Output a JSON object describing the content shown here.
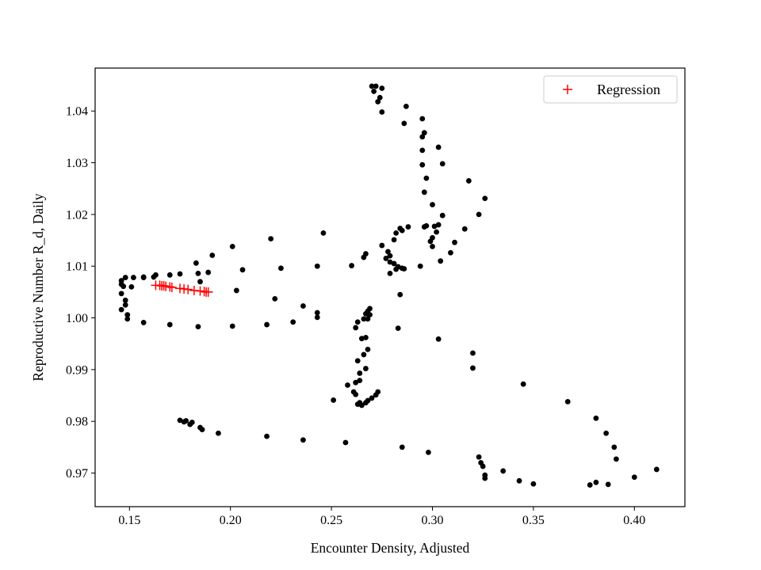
{
  "chart_data": {
    "type": "scatter",
    "title": "",
    "xlabel": "Encounter Density, Adjusted",
    "ylabel": "Reproductive Number R_d, Daily",
    "xlim": [
      0.133,
      0.425
    ],
    "ylim": [
      0.9635,
      1.0483
    ],
    "xticks": [
      0.15,
      0.2,
      0.25,
      0.3,
      0.35,
      0.4
    ],
    "xtick_labels": [
      "0.15",
      "0.20",
      "0.25",
      "0.30",
      "0.35",
      "0.40"
    ],
    "yticks": [
      0.97,
      0.98,
      0.99,
      1.0,
      1.01,
      1.02,
      1.03,
      1.04
    ],
    "ytick_labels": [
      "0.97",
      "0.98",
      "0.99",
      "1.00",
      "1.01",
      "1.02",
      "1.03",
      "1.04"
    ],
    "grid": false,
    "legend": {
      "position": "top-right",
      "entries": [
        "Regression"
      ]
    },
    "colors": {
      "points": "#000000",
      "regression": "#ff0000",
      "axes": "#000000",
      "legend_border": "#cccccc"
    },
    "series": [
      {
        "marker": "dot",
        "x": [
          0.27,
          0.272,
          0.271,
          0.275,
          0.273,
          0.274,
          0.275,
          0.287,
          0.286,
          0.295,
          0.296,
          0.295,
          0.303,
          0.295,
          0.305,
          0.295,
          0.297,
          0.318,
          0.296,
          0.326,
          0.3,
          0.323,
          0.305,
          0.316,
          0.297,
          0.303,
          0.301,
          0.302,
          0.3,
          0.299,
          0.311,
          0.3,
          0.309,
          0.304,
          0.294,
          0.296,
          0.288,
          0.285,
          0.284,
          0.282,
          0.281,
          0.279,
          0.278,
          0.277,
          0.285,
          0.283,
          0.286,
          0.282,
          0.279,
          0.281,
          0.279,
          0.284,
          0.283,
          0.303,
          0.32,
          0.32,
          0.345,
          0.367,
          0.381,
          0.386,
          0.39,
          0.391,
          0.411,
          0.4,
          0.387,
          0.381,
          0.378,
          0.35,
          0.343,
          0.335,
          0.326,
          0.326,
          0.325,
          0.324,
          0.323,
          0.298,
          0.285,
          0.257,
          0.236,
          0.218,
          0.194,
          0.186,
          0.185,
          0.181,
          0.178,
          0.18,
          0.177,
          0.175,
          0.146,
          0.146,
          0.148,
          0.148,
          0.149,
          0.149,
          0.146,
          0.147,
          0.146,
          0.151,
          0.148,
          0.152,
          0.157,
          0.157,
          0.162,
          0.163,
          0.17,
          0.175,
          0.184,
          0.183,
          0.185,
          0.189,
          0.191,
          0.201,
          0.203,
          0.206,
          0.22,
          0.225,
          0.222,
          0.243,
          0.246,
          0.236,
          0.243,
          0.243,
          0.231,
          0.218,
          0.201,
          0.184,
          0.17,
          0.157,
          0.26,
          0.266,
          0.267,
          0.275,
          0.269,
          0.268,
          0.269,
          0.268,
          0.267,
          0.268,
          0.266,
          0.263,
          0.262,
          0.267,
          0.265,
          0.268,
          0.266,
          0.263,
          0.267,
          0.264,
          0.264,
          0.262,
          0.261,
          0.258,
          0.262,
          0.251,
          0.264,
          0.263,
          0.265,
          0.267,
          0.268,
          0.27,
          0.272,
          0.273
        ],
        "y": [
          1.0448,
          1.0448,
          1.0438,
          1.0444,
          1.0418,
          1.0426,
          1.0398,
          1.0409,
          1.0376,
          1.0385,
          1.0358,
          1.035,
          1.033,
          1.0324,
          1.0298,
          1.0296,
          1.027,
          1.0265,
          1.0243,
          1.0231,
          1.0219,
          1.02,
          1.0198,
          1.0172,
          1.0178,
          1.018,
          1.0177,
          1.0166,
          1.0155,
          1.0148,
          1.0146,
          1.0138,
          1.0126,
          1.011,
          1.01,
          1.0176,
          1.0176,
          1.0169,
          1.0173,
          1.0164,
          1.0151,
          1.012,
          1.0128,
          1.0115,
          1.0096,
          1.0099,
          1.0095,
          1.0094,
          1.0108,
          1.0105,
          1.0086,
          1.0045,
          0.998,
          0.9959,
          0.9932,
          0.9903,
          0.9872,
          0.9838,
          0.9806,
          0.9777,
          0.975,
          0.9727,
          0.9707,
          0.9692,
          0.9678,
          0.9682,
          0.9677,
          0.9679,
          0.9685,
          0.9704,
          0.969,
          0.9696,
          0.9713,
          0.972,
          0.9731,
          0.974,
          0.975,
          0.9759,
          0.9764,
          0.9771,
          0.9777,
          0.9784,
          0.9788,
          0.9798,
          0.9801,
          0.9794,
          0.9799,
          0.9802,
          1.0016,
          1.0047,
          1.0034,
          1.0025,
          0.9998,
          1.0006,
          1.0065,
          1.0061,
          1.0072,
          1.006,
          1.0078,
          1.0078,
          1.0078,
          1.0079,
          1.0079,
          1.0083,
          1.0083,
          1.0085,
          1.0086,
          1.0106,
          1.007,
          1.0088,
          1.0121,
          1.0138,
          1.0053,
          1.0093,
          1.0153,
          1.0096,
          1.0037,
          1.01,
          1.0164,
          1.0023,
          1.001,
          1.0001,
          0.9992,
          0.9987,
          0.9984,
          0.9983,
          0.9987,
          0.9991,
          1.0101,
          1.0117,
          1.0124,
          1.014,
          1.0018,
          1.0013,
          1.0006,
          1.0008,
          1.0008,
          0.9998,
          0.9998,
          0.9992,
          0.9981,
          0.9962,
          0.996,
          0.9939,
          0.9929,
          0.9917,
          0.9902,
          0.9893,
          0.9879,
          0.9875,
          0.9857,
          0.987,
          0.9852,
          0.9841,
          0.9836,
          0.9833,
          0.9831,
          0.9836,
          0.984,
          0.9845,
          0.9851,
          0.9857
        ]
      },
      {
        "name": "Regression",
        "marker": "plus",
        "x": [
          0.163,
          0.165,
          0.166,
          0.167,
          0.168,
          0.17,
          0.171,
          0.175,
          0.177,
          0.179,
          0.182,
          0.185,
          0.187,
          0.188,
          0.189
        ],
        "y": [
          1.0063,
          1.0063,
          1.0062,
          1.0062,
          1.0061,
          1.006,
          1.0059,
          1.0057,
          1.0056,
          1.0055,
          1.0053,
          1.0052,
          1.0051,
          1.005,
          1.005
        ]
      }
    ]
  }
}
